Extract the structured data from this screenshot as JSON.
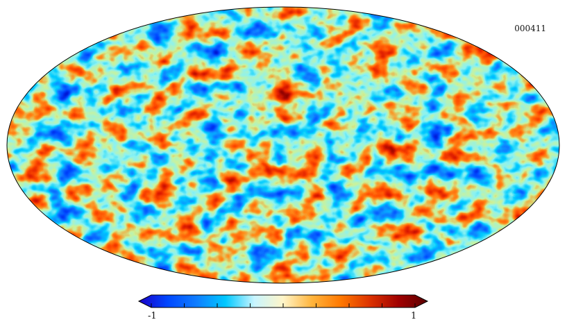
{
  "map": {
    "projection": "mollweide",
    "identifier": "000411",
    "colormap": [
      "#1a00c8",
      "#0047ff",
      "#0f7dff",
      "#00c8ff",
      "#c8f5ff",
      "#fff5c8",
      "#ffb43c",
      "#ff7800",
      "#dc3200",
      "#a00000",
      "#5a0000"
    ]
  },
  "colorbar": {
    "min_label": "-1",
    "max_label": "1",
    "min": -1,
    "max": 1,
    "ticks": 9
  }
}
